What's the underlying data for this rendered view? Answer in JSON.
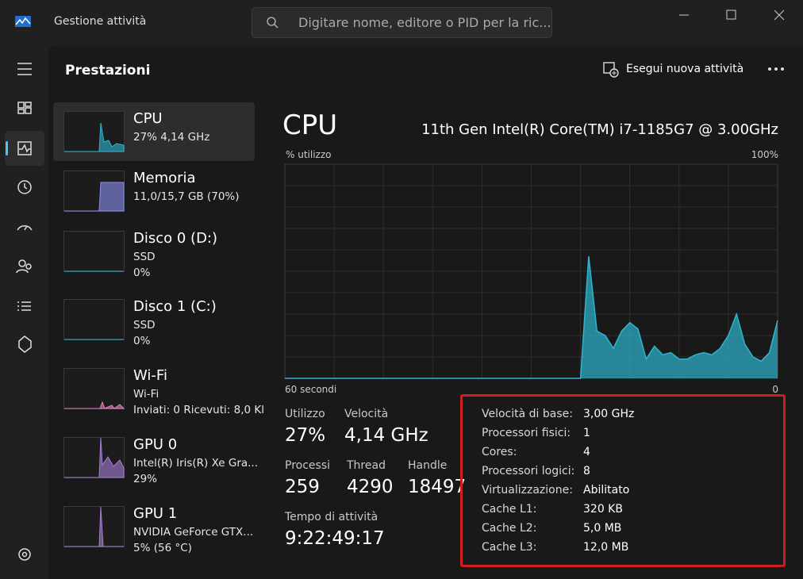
{
  "window": {
    "title": "Gestione attività",
    "search_placeholder": "Digitare nome, editore o PID per la ric..."
  },
  "header": {
    "title": "Prestazioni",
    "action": "Esegui nuova attività"
  },
  "devices": [
    {
      "name": "CPU",
      "lines": [
        "27%  4,14 GHz"
      ]
    },
    {
      "name": "Memoria",
      "lines": [
        "11,0/15,7 GB (70%)"
      ]
    },
    {
      "name": "Disco 0 (D:)",
      "lines": [
        "SSD",
        "0%"
      ]
    },
    {
      "name": "Disco 1 (C:)",
      "lines": [
        "SSD",
        "0%"
      ]
    },
    {
      "name": "Wi-Fi",
      "lines": [
        "Wi-Fi",
        "Inviati: 0 Ricevuti: 8,0 Kl"
      ]
    },
    {
      "name": "GPU 0",
      "lines": [
        "Intel(R) Iris(R) Xe Gra...",
        "29%"
      ]
    },
    {
      "name": "GPU 1",
      "lines": [
        "NVIDIA GeForce GTX...",
        "5%  (56 °C)"
      ]
    }
  ],
  "detail": {
    "title": "CPU",
    "model": "11th Gen Intel(R) Core(TM) i7-1185G7 @ 3.00GHz"
  },
  "chart_data": {
    "type": "area",
    "y_label": "% utilizzo",
    "y_max_label": "100%",
    "x_labels": [
      "60 secondi",
      "0"
    ],
    "ylim": [
      0,
      100
    ],
    "color": "#2fb5d0",
    "values": [
      0,
      0,
      0,
      0,
      0,
      0,
      0,
      0,
      0,
      0,
      0,
      0,
      0,
      0,
      0,
      0,
      0,
      0,
      0,
      0,
      0,
      0,
      0,
      0,
      0,
      0,
      0,
      0,
      0,
      0,
      0,
      0,
      0,
      0,
      0,
      0,
      0,
      57,
      22,
      20,
      14,
      22,
      26,
      23,
      9,
      15,
      11,
      12,
      9,
      9,
      11,
      12,
      11,
      14,
      20,
      30,
      16,
      10,
      8,
      12,
      27
    ]
  },
  "stats": [
    {
      "label": "Utilizzo",
      "value": "27%"
    },
    {
      "label": "Velocità",
      "value": "4,14 GHz"
    },
    {
      "label": "Processi",
      "value": "259"
    },
    {
      "label": "Thread",
      "value": "4290"
    },
    {
      "label": "Handle",
      "value": "18497"
    }
  ],
  "uptime": {
    "label": "Tempo di attività",
    "value": "9:22:49:17"
  },
  "specs": [
    {
      "label": "Velocità di base:",
      "value": "3,00 GHz"
    },
    {
      "label": "Processori fisici:",
      "value": "1"
    },
    {
      "label": "Cores:",
      "value": "4"
    },
    {
      "label": "Processori logici:",
      "value": "8"
    },
    {
      "label": "Virtualizzazione:",
      "value": "Abilitato"
    },
    {
      "label": "Cache L1:",
      "value": "320 KB"
    },
    {
      "label": "Cache L2:",
      "value": "5,0 MB"
    },
    {
      "label": "Cache L3:",
      "value": "12,0 MB"
    }
  ]
}
